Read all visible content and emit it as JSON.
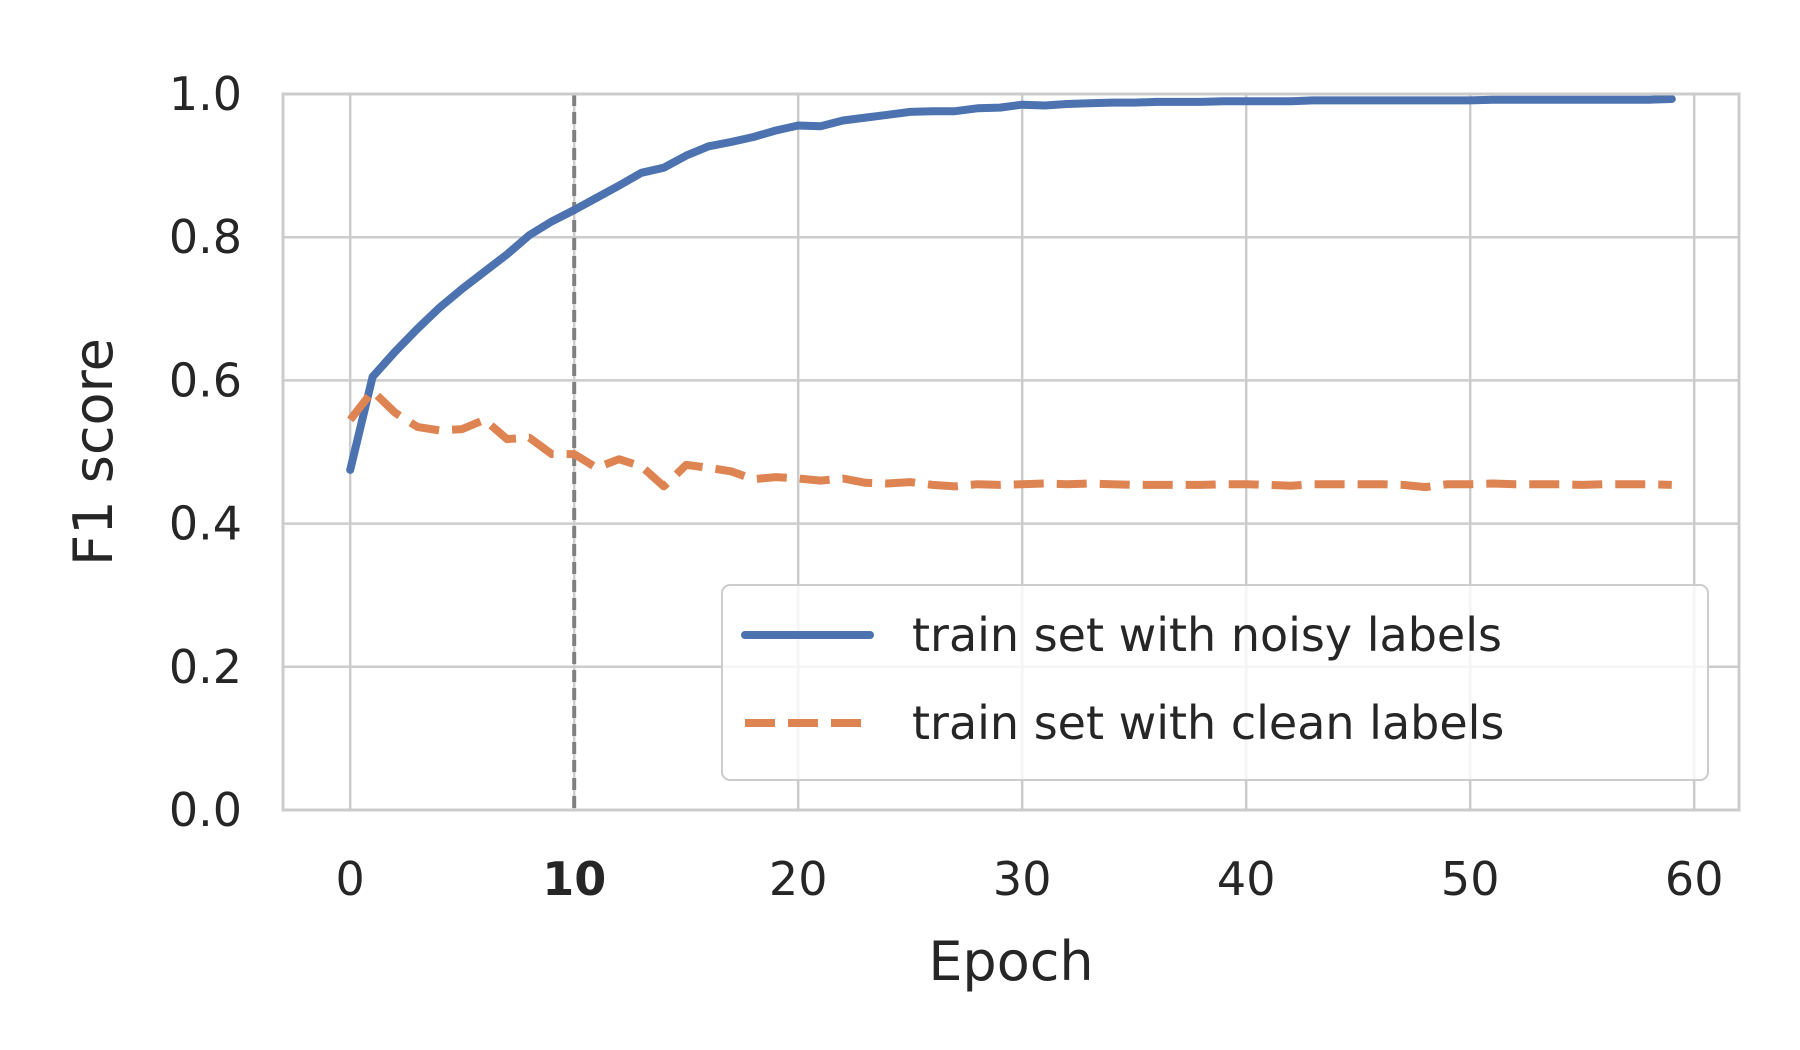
{
  "chart_data": {
    "type": "line",
    "xlabel": "Epoch",
    "ylabel": "F1 score",
    "xlim": [
      -3,
      62
    ],
    "ylim": [
      0.0,
      1.0
    ],
    "xticks": [
      {
        "value": 0,
        "label": "0",
        "bold": false
      },
      {
        "value": 10,
        "label": "10",
        "bold": true
      },
      {
        "value": 20,
        "label": "20",
        "bold": false
      },
      {
        "value": 30,
        "label": "30",
        "bold": false
      },
      {
        "value": 40,
        "label": "40",
        "bold": false
      },
      {
        "value": 50,
        "label": "50",
        "bold": false
      },
      {
        "value": 60,
        "label": "60",
        "bold": false
      }
    ],
    "yticks": [
      {
        "value": 0.0,
        "label": "0.0"
      },
      {
        "value": 0.2,
        "label": "0.2"
      },
      {
        "value": 0.4,
        "label": "0.4"
      },
      {
        "value": 0.6,
        "label": "0.6"
      },
      {
        "value": 0.8,
        "label": "0.8"
      },
      {
        "value": 1.0,
        "label": "1.0"
      }
    ],
    "grid": true,
    "legend_position": "lower-right",
    "vline": {
      "x": 10,
      "color": "#808080",
      "style": "dashed"
    },
    "series": [
      {
        "name": "train set with noisy labels",
        "color": "#4c72b0",
        "style": "solid",
        "x": [
          0,
          1,
          2,
          3,
          4,
          5,
          6,
          7,
          8,
          9,
          10,
          11,
          12,
          13,
          14,
          15,
          16,
          17,
          18,
          19,
          20,
          21,
          22,
          23,
          24,
          25,
          26,
          27,
          28,
          29,
          30,
          31,
          32,
          33,
          34,
          35,
          36,
          37,
          38,
          39,
          40,
          41,
          42,
          43,
          44,
          45,
          46,
          47,
          48,
          49,
          50,
          51,
          52,
          53,
          54,
          55,
          56,
          57,
          58,
          59
        ],
        "y": [
          0.475,
          0.605,
          0.64,
          0.672,
          0.702,
          0.728,
          0.752,
          0.776,
          0.803,
          0.822,
          0.838,
          0.855,
          0.872,
          0.89,
          0.897,
          0.914,
          0.927,
          0.933,
          0.94,
          0.949,
          0.956,
          0.955,
          0.963,
          0.967,
          0.971,
          0.975,
          0.976,
          0.976,
          0.98,
          0.981,
          0.985,
          0.984,
          0.986,
          0.987,
          0.988,
          0.988,
          0.989,
          0.989,
          0.989,
          0.99,
          0.99,
          0.99,
          0.99,
          0.991,
          0.991,
          0.991,
          0.991,
          0.991,
          0.991,
          0.991,
          0.991,
          0.992,
          0.992,
          0.992,
          0.992,
          0.992,
          0.992,
          0.992,
          0.992,
          0.993
        ]
      },
      {
        "name": "train set with clean labels",
        "color": "#dd8452",
        "style": "dashed",
        "x": [
          0,
          1,
          2,
          3,
          4,
          5,
          6,
          7,
          8,
          9,
          10,
          11,
          12,
          13,
          14,
          15,
          16,
          17,
          18,
          19,
          20,
          21,
          22,
          23,
          24,
          25,
          26,
          27,
          28,
          29,
          30,
          31,
          32,
          33,
          34,
          35,
          36,
          37,
          38,
          39,
          40,
          41,
          42,
          43,
          44,
          45,
          46,
          47,
          48,
          49,
          50,
          51,
          52,
          53,
          54,
          55,
          56,
          57,
          58,
          59
        ],
        "y": [
          0.545,
          0.585,
          0.555,
          0.535,
          0.53,
          0.532,
          0.545,
          0.518,
          0.52,
          0.497,
          0.497,
          0.478,
          0.49,
          0.48,
          0.452,
          0.482,
          0.478,
          0.473,
          0.462,
          0.465,
          0.463,
          0.46,
          0.463,
          0.457,
          0.456,
          0.458,
          0.454,
          0.452,
          0.455,
          0.454,
          0.455,
          0.456,
          0.455,
          0.456,
          0.455,
          0.454,
          0.454,
          0.454,
          0.454,
          0.455,
          0.455,
          0.454,
          0.453,
          0.455,
          0.455,
          0.455,
          0.455,
          0.454,
          0.451,
          0.455,
          0.455,
          0.456,
          0.455,
          0.455,
          0.455,
          0.454,
          0.455,
          0.455,
          0.455,
          0.454
        ]
      }
    ]
  }
}
